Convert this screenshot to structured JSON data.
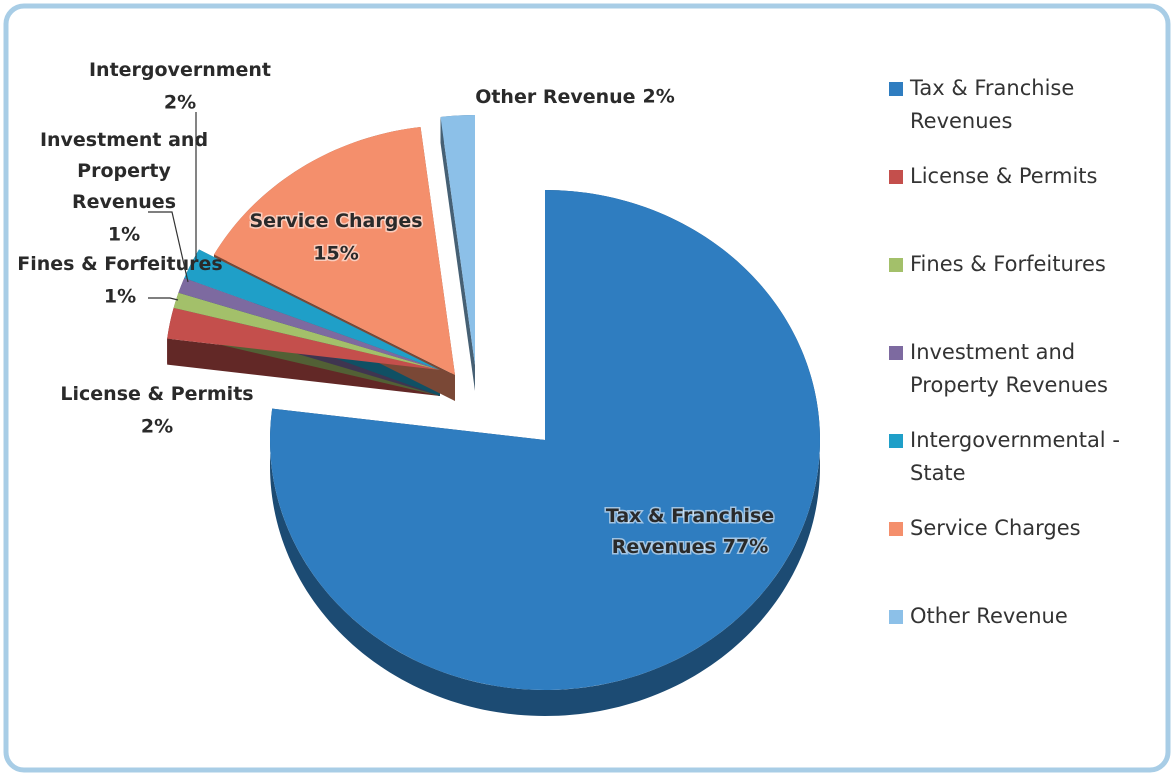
{
  "chart_data": {
    "type": "pie",
    "categories": [
      "Tax & Franchise Revenues",
      "License & Permits",
      "Fines & Forfeitures",
      "Investment and Property Revenues",
      "Intergovernmental - State",
      "Service Charges",
      "Other Revenue"
    ],
    "labels": [
      "Tax & Franchise Revenues",
      "License & Permits",
      "Fines & Forfeitures",
      "Investment and Property Revenues",
      "Intergovernment",
      "Service Charges",
      "Other Revenue"
    ],
    "values": [
      77,
      2,
      1,
      1,
      2,
      15,
      2
    ],
    "value_labels": [
      "77%",
      "2%",
      "1%",
      "1%",
      "2%",
      "15%",
      "2%"
    ],
    "colors": [
      "#2f7dc0",
      "#c44f4c",
      "#a3c06a",
      "#7d6aa0",
      "#1f9fc8",
      "#f48f6c",
      "#8cc0e8"
    ],
    "legend": "right"
  }
}
